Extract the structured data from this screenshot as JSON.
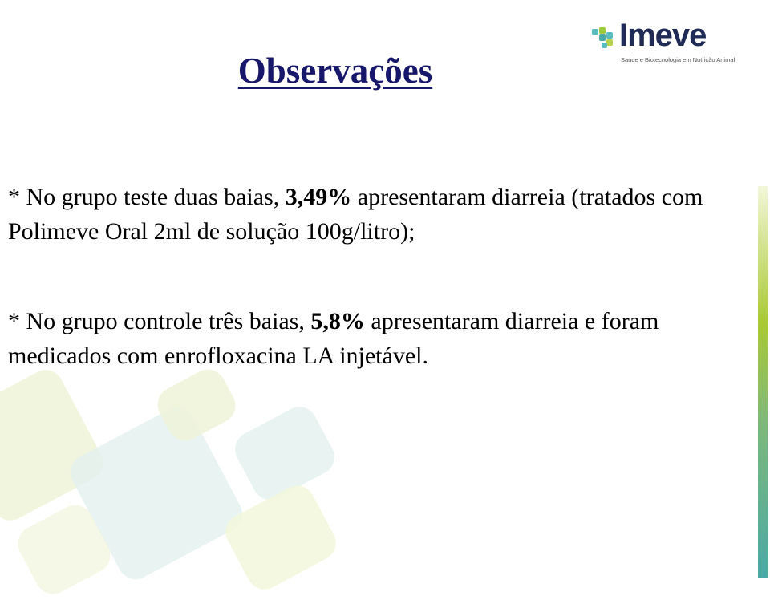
{
  "logo": {
    "name": "Imeve",
    "tagline": "Saúde e Biotecnologia em Nutrição Animal"
  },
  "title": "Observações",
  "paragraphs": [
    {
      "prefix": "* No grupo teste duas baias, ",
      "bold": "3,49%",
      "suffix": " apresentaram diarreia (tratados com Polimeve Oral 2ml de solução 100g/litro);"
    },
    {
      "prefix": "* No grupo controle três baias, ",
      "bold": "5,8%",
      "suffix": " apresentaram diarreia e foram medicados com enrofloxacina LA injetável."
    }
  ],
  "colors": {
    "title": "#17176b",
    "accent_green": "#a9c934",
    "accent_teal": "#4aa9a6"
  }
}
